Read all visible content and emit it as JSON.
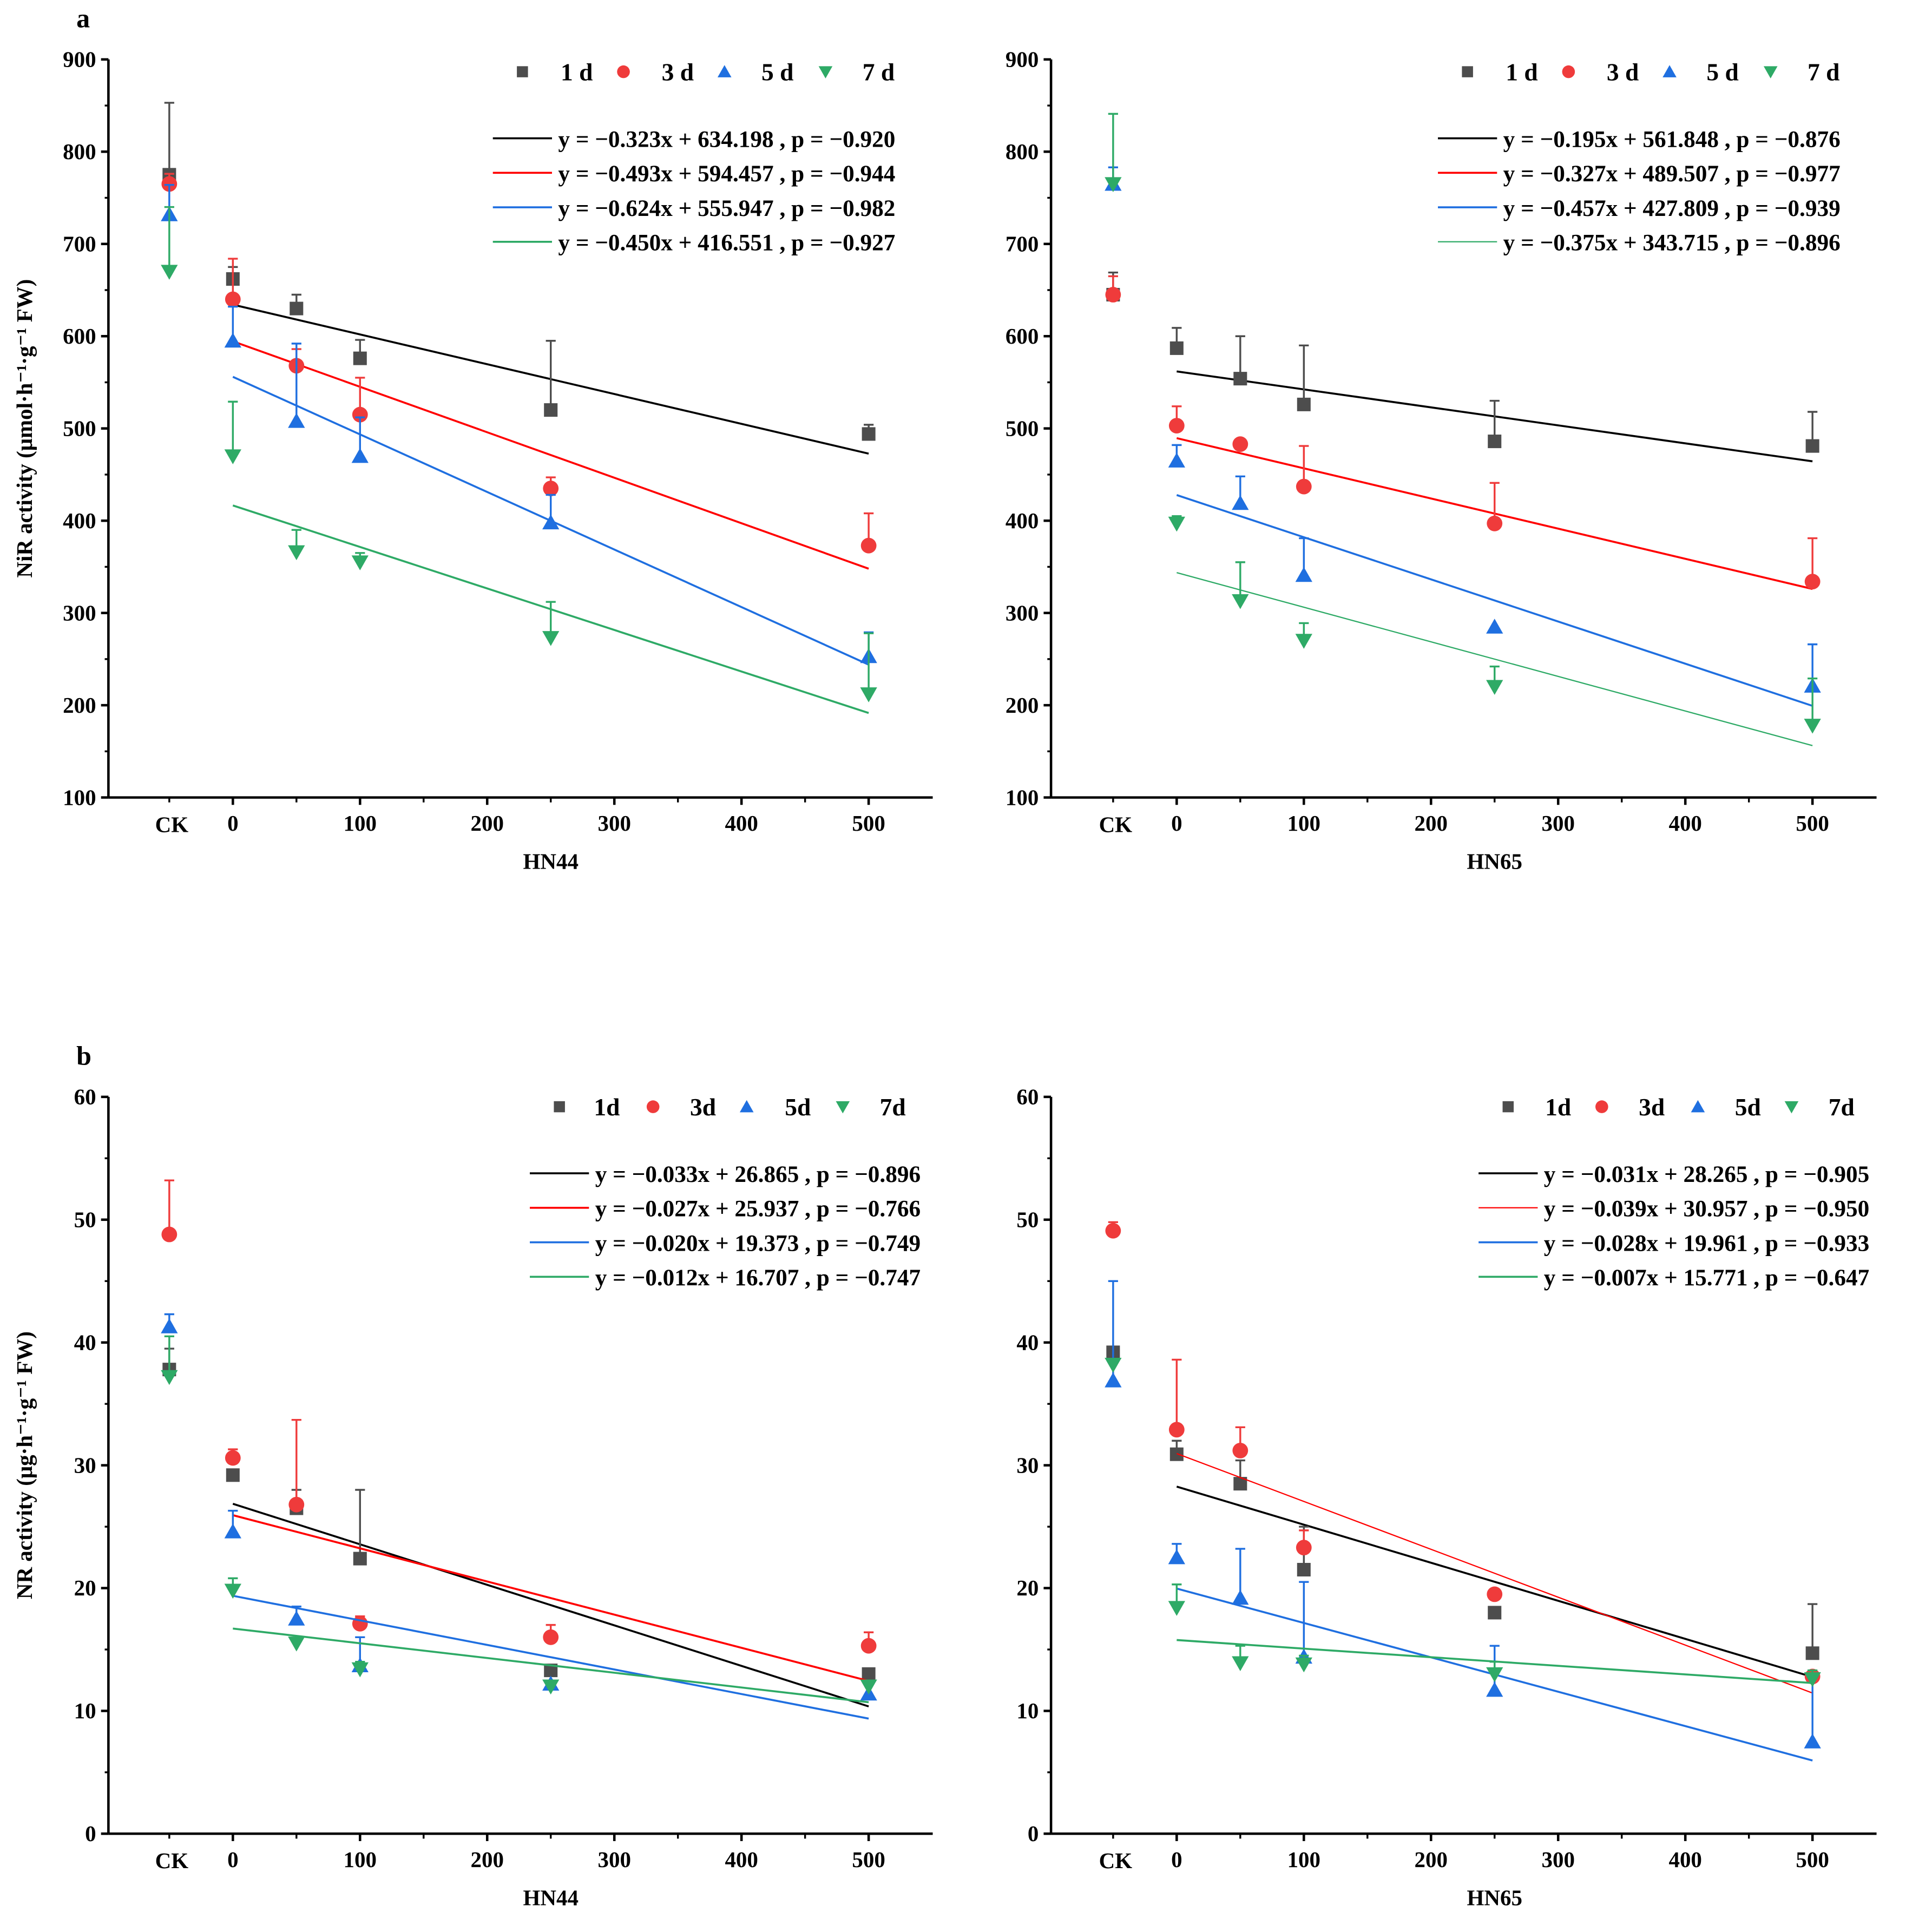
{
  "colors": {
    "1d": "#4d4d4d",
    "3d": "#ef3b3b",
    "5d": "#1f6fe0",
    "7d": "#2eaa66",
    "line1d": "#000000",
    "line3d": "#ff0000",
    "line5d": "#1f6fe0",
    "line7d": "#2eaa66"
  },
  "chart_data": [
    {
      "type": "scatter",
      "panel_label": "a",
      "title": "",
      "xlabel": "HN44",
      "ylabel": "NiR activity (μmol·h⁻¹·g⁻¹ FW)",
      "ylim": [
        100,
        900
      ],
      "yticks": [
        100,
        200,
        300,
        400,
        500,
        600,
        700,
        800,
        900
      ],
      "xticks": [
        0,
        100,
        200,
        300,
        400,
        500
      ],
      "ck_label": "CK",
      "x": [
        "CK",
        0,
        50,
        100,
        250,
        500
      ],
      "legend": [
        "1 d",
        "3 d",
        "5 d",
        "7 d"
      ],
      "legend_position": "top-right",
      "series": [
        {
          "name": "1 d",
          "values": [
            775,
            662,
            630,
            576,
            520,
            494
          ],
          "err_upper": [
            853,
            675,
            645,
            596,
            595,
            504
          ],
          "fit": {
            "slope": -0.323,
            "intercept": 634.198
          },
          "equation": "y = −0.323x + 634.198 , p = −0.920"
        },
        {
          "name": "3 d",
          "values": [
            765,
            640,
            568,
            515,
            435,
            373
          ],
          "err_upper": [
            776,
            684,
            586,
            555,
            447,
            408
          ],
          "fit": {
            "slope": -0.493,
            "intercept": 594.457
          },
          "equation": "y = −0.493x + 594.457 , p = −0.944"
        },
        {
          "name": "5 d",
          "values": [
            732,
            595,
            508,
            470,
            398,
            253
          ],
          "err_upper": [
            764,
            632,
            592,
            512,
            428,
            279
          ],
          "fit": {
            "slope": -0.624,
            "intercept": 555.947
          },
          "equation": "y = −0.624x + 555.947 , p = −0.982"
        },
        {
          "name": "7 d",
          "values": [
            670,
            470,
            366,
            355,
            273,
            212
          ],
          "err_upper": [
            740,
            529,
            390,
            365,
            312,
            278
          ],
          "fit": {
            "slope": -0.45,
            "intercept": 416.551
          },
          "equation": "y = −0.450x + 416.551 , p = −0.927"
        }
      ]
    },
    {
      "type": "scatter",
      "panel_label": "",
      "xlabel": "HN65",
      "ylabel": "",
      "ylim": [
        100,
        900
      ],
      "yticks": [
        100,
        200,
        300,
        400,
        500,
        600,
        700,
        800,
        900
      ],
      "xticks": [
        0,
        100,
        200,
        300,
        400,
        500
      ],
      "ck_label": "CK",
      "x": [
        "CK",
        0,
        50,
        100,
        250,
        500
      ],
      "legend": [
        "1 d",
        "3 d",
        "5 d",
        "7 d"
      ],
      "legend_position": "top-right",
      "series": [
        {
          "name": "1 d",
          "values": [
            645,
            587,
            554,
            526,
            486,
            481
          ],
          "err_upper": [
            669,
            609,
            600,
            590,
            530,
            518
          ],
          "fit": {
            "slope": -0.195,
            "intercept": 561.848
          },
          "equation": "y = −0.195x + 561.848 , p = −0.876"
        },
        {
          "name": "3 d",
          "values": [
            645,
            503,
            483,
            437,
            397,
            334
          ],
          "err_upper": [
            665,
            524,
            483,
            481,
            441,
            381
          ],
          "fit": {
            "slope": -0.327,
            "intercept": 489.507
          },
          "equation": "y = −0.327x + 489.507 , p = −0.977"
        },
        {
          "name": "5 d",
          "values": [
            765,
            465,
            419,
            341,
            285,
            221
          ],
          "err_upper": [
            783,
            482,
            448,
            381,
            285,
            266
          ],
          "fit": {
            "slope": -0.457,
            "intercept": 427.809
          },
          "equation": "y = −0.457x + 427.809 , p = −0.939"
        },
        {
          "name": "7 d",
          "values": [
            765,
            397,
            313,
            270,
            220,
            178
          ],
          "err_upper": [
            841,
            405,
            355,
            289,
            242,
            229
          ],
          "fit": {
            "slope": -0.375,
            "intercept": 343.715
          },
          "equation": "y = −0.375x + 343.715 , p = −0.896"
        }
      ]
    },
    {
      "type": "scatter",
      "panel_label": "b",
      "xlabel": "HN44",
      "ylabel": "NR activity (μg·h⁻¹·g⁻¹ FW)",
      "ylim": [
        0,
        60
      ],
      "yticks": [
        0,
        10,
        20,
        30,
        40,
        50,
        60
      ],
      "xticks": [
        0,
        100,
        200,
        300,
        400,
        500
      ],
      "ck_label": "CK",
      "x": [
        "CK",
        0,
        50,
        100,
        250,
        500
      ],
      "legend": [
        "1d",
        "3d",
        "5d",
        "7d"
      ],
      "legend_position": "top-right",
      "series": [
        {
          "name": "1d",
          "values": [
            37.8,
            29.2,
            26.5,
            22.4,
            13.3,
            13.0
          ],
          "err_upper": [
            39.5,
            29.2,
            28.0,
            28.0,
            13.3,
            13.0
          ],
          "fit": {
            "slope": -0.033,
            "intercept": 26.865
          },
          "equation": "y = −0.033x + 26.865 , p = −0.896"
        },
        {
          "name": "3d",
          "values": [
            48.8,
            30.6,
            26.8,
            17.1,
            16.0,
            15.3
          ],
          "err_upper": [
            53.2,
            31.3,
            33.7,
            17.7,
            17.0,
            16.4
          ],
          "fit": {
            "slope": -0.027,
            "intercept": 25.937
          },
          "equation": "y = −0.027x + 25.937 , p = −0.766"
        },
        {
          "name": "5d",
          "values": [
            41.3,
            24.6,
            17.5,
            13.7,
            12.2,
            11.4
          ],
          "err_upper": [
            42.3,
            26.3,
            18.5,
            16.0,
            12.2,
            11.4
          ],
          "fit": {
            "slope": -0.02,
            "intercept": 19.373
          },
          "equation": "y = −0.020x + 19.373 , p = −0.749"
        },
        {
          "name": "7d",
          "values": [
            37.2,
            19.8,
            15.5,
            13.4,
            12.0,
            12.0
          ],
          "err_upper": [
            40.5,
            20.8,
            15.5,
            14.0,
            12.0,
            12.0
          ],
          "fit": {
            "slope": -0.012,
            "intercept": 16.707
          },
          "equation": "y = −0.012x + 16.707 , p = −0.747"
        }
      ]
    },
    {
      "type": "scatter",
      "panel_label": "",
      "xlabel": "HN65",
      "ylabel": "",
      "ylim": [
        0,
        60
      ],
      "yticks": [
        0,
        10,
        20,
        30,
        40,
        50,
        60
      ],
      "xticks": [
        0,
        100,
        200,
        300,
        400,
        500
      ],
      "ck_label": "CK",
      "x": [
        "CK",
        0,
        50,
        100,
        250,
        500
      ],
      "legend": [
        "1d",
        "3d",
        "5d",
        "7d"
      ],
      "legend_position": "top-right",
      "series": [
        {
          "name": "1d",
          "values": [
            39.2,
            30.9,
            28.5,
            21.5,
            18.0,
            14.7
          ],
          "err_upper": [
            39.2,
            32.0,
            30.4,
            25.0,
            18.0,
            18.7
          ],
          "fit": {
            "slope": -0.031,
            "intercept": 28.265
          },
          "equation": "y = −0.031x + 28.265 , p = −0.905"
        },
        {
          "name": "3d",
          "values": [
            49.1,
            32.9,
            31.2,
            23.3,
            19.5,
            12.8
          ],
          "err_upper": [
            49.8,
            38.6,
            33.1,
            24.7,
            19.7,
            12.8
          ],
          "fit": {
            "slope": -0.039,
            "intercept": 30.957
          },
          "equation": "y = −0.039x + 30.957 , p = −0.950"
        },
        {
          "name": "5d",
          "values": [
            36.9,
            22.5,
            19.2,
            14.4,
            11.7,
            7.5
          ],
          "err_upper": [
            45.0,
            23.6,
            23.2,
            20.5,
            15.3,
            12.7
          ],
          "fit": {
            "slope": -0.028,
            "intercept": 19.961
          },
          "equation": "y = −0.028x + 19.961 , p = −0.933"
        },
        {
          "name": "7d",
          "values": [
            38.2,
            18.4,
            13.9,
            13.8,
            13.0,
            12.6
          ],
          "err_upper": [
            38.2,
            20.3,
            15.3,
            14.5,
            14.0,
            13.3
          ],
          "fit": {
            "slope": -0.007,
            "intercept": 15.771
          },
          "equation": "y = −0.007x + 15.771 , p = −0.647"
        }
      ]
    }
  ]
}
